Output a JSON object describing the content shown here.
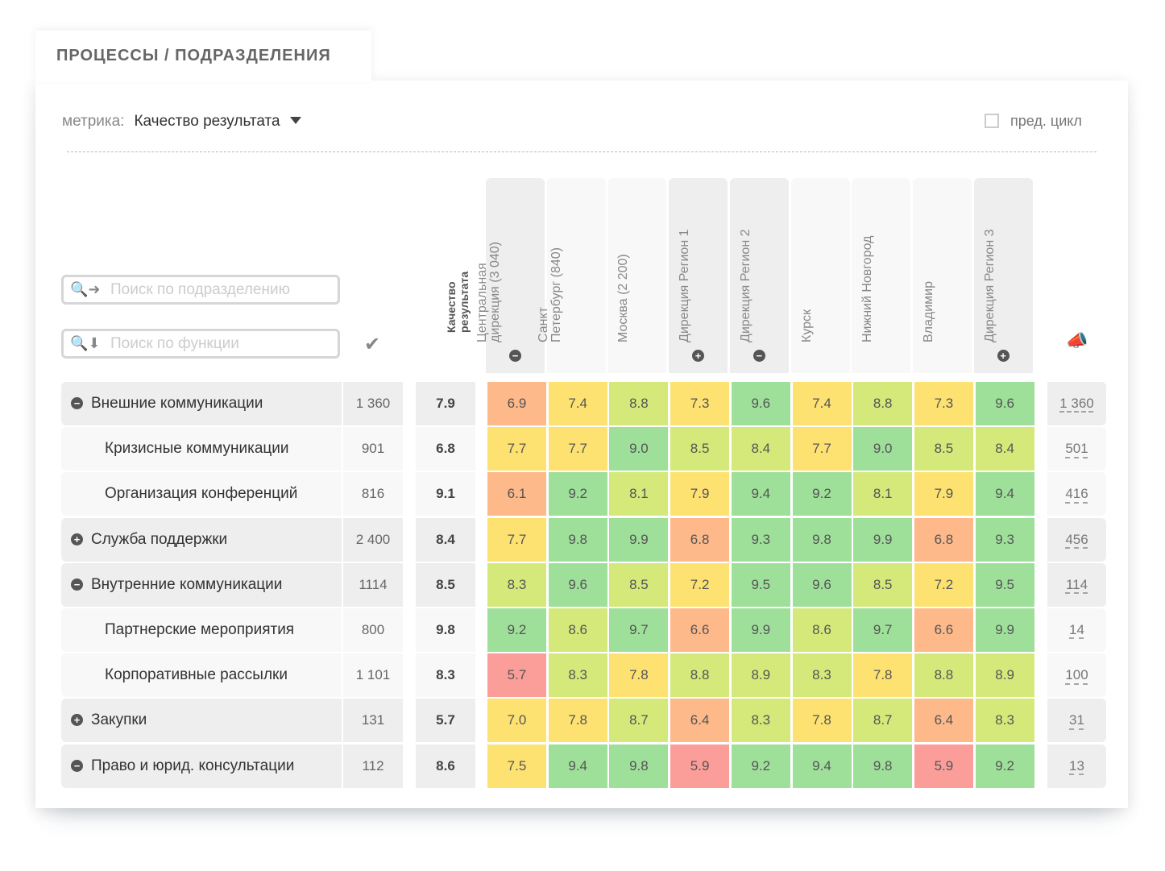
{
  "tab_title": "ПРОЦЕССЫ / ПОДРАЗДЕЛЕНИЯ",
  "metric": {
    "label": "метрика:",
    "value": "Качество результата"
  },
  "prev_cycle": {
    "label": "пред. цикл",
    "checked": false
  },
  "search_unit": {
    "placeholder": "Поиск по подразделению",
    "icon": "search-right-arrow-icon"
  },
  "search_function": {
    "placeholder": "Поиск по функции",
    "icon": "search-down-arrow-icon"
  },
  "score_header": "Качество\nрезультата",
  "columns": [
    {
      "label": "Центральная\nдирекция (3 040)",
      "toggle": "−",
      "shade": "dark"
    },
    {
      "label": "Санкт\nПетербург (840)",
      "toggle": "",
      "shade": "light"
    },
    {
      "label": "Москва (2 200)",
      "toggle": "",
      "shade": "light"
    },
    {
      "label": "Дирекция Регион 1",
      "toggle": "+",
      "shade": "dark"
    },
    {
      "label": "Дирекция Регион 2",
      "toggle": "−",
      "shade": "dark"
    },
    {
      "label": "Курск",
      "toggle": "",
      "shade": "light"
    },
    {
      "label": "Нижний Новгород",
      "toggle": "",
      "shade": "light"
    },
    {
      "label": "Владимир",
      "toggle": "",
      "shade": "light"
    },
    {
      "label": "Дирекция Регион 3",
      "toggle": "+",
      "shade": "dark"
    }
  ],
  "heat_colors": {
    "below_6": "#fb9e9a",
    "6_to_7": "#fdb98a",
    "7_to_8": "#fde272",
    "8_to_9": "#d4e97a",
    "9_plus": "#9ee09a"
  },
  "rows": [
    {
      "name": "Внешние коммуникации",
      "toggle": "−",
      "level": 0,
      "count": "1 360",
      "score": "7.9",
      "values": [
        "6.9",
        "7.4",
        "8.8",
        "7.3",
        "9.6",
        "7.4",
        "8.8",
        "7.3",
        "9.6"
      ],
      "right": "1 360"
    },
    {
      "name": "Кризисные коммуникации",
      "toggle": "",
      "level": 1,
      "count": "901",
      "score": "6.8",
      "values": [
        "7.7",
        "7.7",
        "9.0",
        "8.5",
        "8.4",
        "7.7",
        "9.0",
        "8.5",
        "8.4"
      ],
      "right": "501"
    },
    {
      "name": "Организация конференций",
      "toggle": "",
      "level": 1,
      "count": "816",
      "score": "9.1",
      "values": [
        "6.1",
        "9.2",
        "8.1",
        "7.9",
        "9.4",
        "9.2",
        "8.1",
        "7.9",
        "9.4"
      ],
      "right": "416"
    },
    {
      "name": "Служба поддержки",
      "toggle": "+",
      "level": 0,
      "count": "2 400",
      "score": "8.4",
      "values": [
        "7.7",
        "9.8",
        "9.9",
        "6.8",
        "9.3",
        "9.8",
        "9.9",
        "6.8",
        "9.3"
      ],
      "right": "456"
    },
    {
      "name": "Внутренние коммуникации",
      "toggle": "−",
      "level": 0,
      "count": "1114",
      "score": "8.5",
      "values": [
        "8.3",
        "9.6",
        "8.5",
        "7.2",
        "9.5",
        "9.6",
        "8.5",
        "7.2",
        "9.5"
      ],
      "right": "114"
    },
    {
      "name": "Партнерские мероприятия",
      "toggle": "",
      "level": 1,
      "count": "800",
      "score": "9.8",
      "values": [
        "9.2",
        "8.6",
        "9.7",
        "6.6",
        "9.9",
        "8.6",
        "9.7",
        "6.6",
        "9.9"
      ],
      "right": "14"
    },
    {
      "name": "Корпоративные рассылки",
      "toggle": "",
      "level": 1,
      "count": "1 101",
      "score": "8.3",
      "values": [
        "5.7",
        "8.3",
        "7.8",
        "8.8",
        "8.9",
        "8.3",
        "7.8",
        "8.8",
        "8.9"
      ],
      "right": "100"
    },
    {
      "name": "Закупки",
      "toggle": "+",
      "level": 0,
      "count": "131",
      "score": "5.7",
      "values": [
        "7.0",
        "7.8",
        "8.7",
        "6.4",
        "8.3",
        "7.8",
        "8.7",
        "6.4",
        "8.3"
      ],
      "right": "31"
    },
    {
      "name": "Право и юрид. консультации",
      "toggle": "−",
      "level": 0,
      "count": "112",
      "score": "8.6",
      "values": [
        "7.5",
        "9.4",
        "9.8",
        "5.9",
        "9.2",
        "9.4",
        "9.8",
        "5.9",
        "9.2"
      ],
      "right": "13"
    }
  ]
}
